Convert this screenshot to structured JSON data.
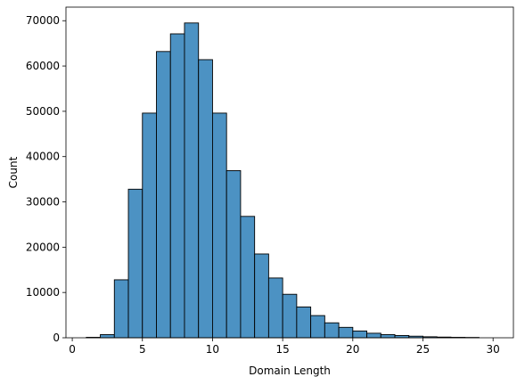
{
  "chart_data": {
    "type": "bar",
    "subtype": "histogram",
    "title": "",
    "xlabel": "Domain Length",
    "ylabel": "Count",
    "xlim": [
      -0.45,
      31.45
    ],
    "ylim": [
      0,
      73000
    ],
    "xticks": [
      0,
      5,
      10,
      15,
      20,
      25,
      30
    ],
    "yticks": [
      0,
      10000,
      20000,
      30000,
      40000,
      50000,
      60000,
      70000
    ],
    "grid": false,
    "legend": "none",
    "bar_color": "#4C92C3",
    "edge_color": "#000000",
    "bins": [
      {
        "x0": 1,
        "x1": 2,
        "count": 100
      },
      {
        "x0": 2,
        "x1": 3,
        "count": 700
      },
      {
        "x0": 3,
        "x1": 4,
        "count": 12800
      },
      {
        "x0": 4,
        "x1": 5,
        "count": 32800
      },
      {
        "x0": 5,
        "x1": 6,
        "count": 49600
      },
      {
        "x0": 6,
        "x1": 7,
        "count": 63200
      },
      {
        "x0": 7,
        "x1": 8,
        "count": 67100
      },
      {
        "x0": 8,
        "x1": 9,
        "count": 69500
      },
      {
        "x0": 9,
        "x1": 10,
        "count": 61400
      },
      {
        "x0": 10,
        "x1": 11,
        "count": 49600
      },
      {
        "x0": 11,
        "x1": 12,
        "count": 36900
      },
      {
        "x0": 12,
        "x1": 13,
        "count": 26800
      },
      {
        "x0": 13,
        "x1": 14,
        "count": 18500
      },
      {
        "x0": 14,
        "x1": 15,
        "count": 13200
      },
      {
        "x0": 15,
        "x1": 16,
        "count": 9600
      },
      {
        "x0": 16,
        "x1": 17,
        "count": 6800
      },
      {
        "x0": 17,
        "x1": 18,
        "count": 4900
      },
      {
        "x0": 18,
        "x1": 19,
        "count": 3300
      },
      {
        "x0": 19,
        "x1": 20,
        "count": 2300
      },
      {
        "x0": 20,
        "x1": 21,
        "count": 1500
      },
      {
        "x0": 21,
        "x1": 22,
        "count": 1000
      },
      {
        "x0": 22,
        "x1": 23,
        "count": 700
      },
      {
        "x0": 23,
        "x1": 24,
        "count": 500
      },
      {
        "x0": 24,
        "x1": 25,
        "count": 350
      },
      {
        "x0": 25,
        "x1": 26,
        "count": 220
      },
      {
        "x0": 26,
        "x1": 27,
        "count": 150
      },
      {
        "x0": 27,
        "x1": 28,
        "count": 100
      },
      {
        "x0": 28,
        "x1": 29,
        "count": 70
      }
    ]
  }
}
